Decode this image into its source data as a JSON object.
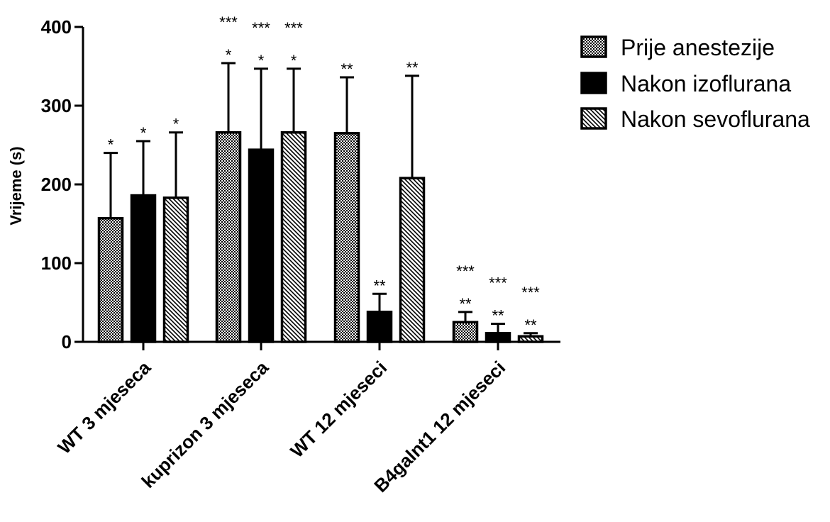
{
  "chart_data": {
    "type": "bar",
    "title": "",
    "xlabel": "",
    "ylabel": "Vrijeme (s)",
    "ylim": [
      0,
      400
    ],
    "yticks": [
      "0",
      "100",
      "200",
      "300",
      "400"
    ],
    "categories": [
      "WT 3 mjeseca",
      "kuprizon 3 mjeseca",
      "WT 12 mjeseci",
      "B4galnt1 12 mjeseci"
    ],
    "series": [
      {
        "name": "Prije anestezije",
        "pattern": "checker",
        "values": [
          157,
          266,
          265,
          25
        ],
        "errors": [
          83,
          88,
          71,
          13
        ],
        "annotations_upper": [
          "",
          "***",
          "",
          "***"
        ],
        "annotations_lower": [
          "*",
          "*",
          "**",
          "**"
        ]
      },
      {
        "name": "Nakon izoflurana",
        "pattern": "solid",
        "color": "#000000",
        "values": [
          186,
          244,
          38,
          11
        ],
        "errors": [
          69,
          103,
          23,
          12
        ],
        "annotations_upper": [
          "",
          "***",
          "",
          "***"
        ],
        "annotations_lower": [
          "*",
          "*",
          "**",
          "**"
        ]
      },
      {
        "name": "Nakon sevoflurana",
        "pattern": "diagonal",
        "values": [
          183,
          266,
          208,
          7
        ],
        "errors": [
          83,
          81,
          130,
          4
        ],
        "annotations_upper": [
          "",
          "***",
          "",
          "***"
        ],
        "annotations_lower": [
          "*",
          "*",
          "**",
          "**"
        ]
      }
    ],
    "legend_position": "right",
    "grid": false
  }
}
